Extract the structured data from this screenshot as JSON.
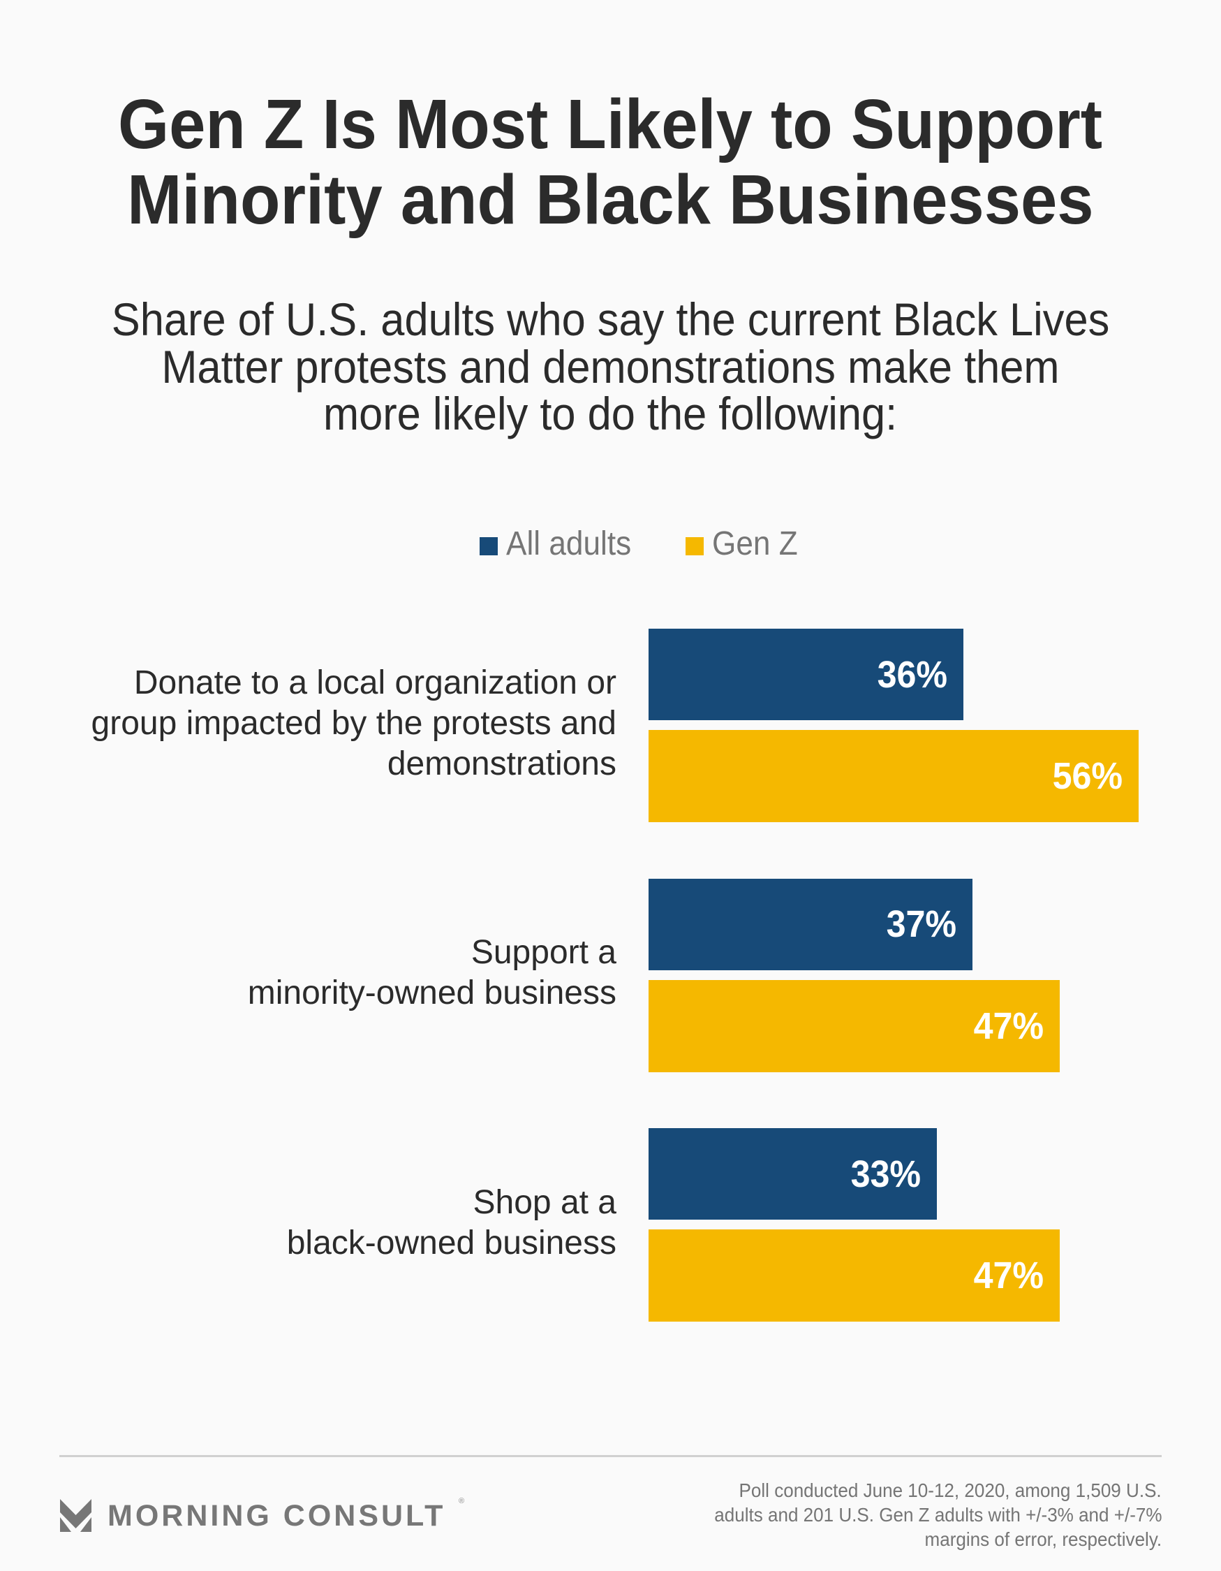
{
  "header": {
    "title_lines": [
      "Gen Z Is Most Likely to Support",
      "Minority and Black Businesses"
    ],
    "subtitle_lines": [
      "Share of U.S. adults who say the current Black Lives",
      "Matter protests and demonstrations make them",
      "more likely to do the following:"
    ]
  },
  "chart_data": {
    "type": "bar",
    "orientation": "horizontal",
    "title": "Gen Z Is Most Likely to Support Minority and Black Businesses",
    "subtitle": "Share of U.S. adults who say the current Black Lives Matter protests and demonstrations make them more likely to do the following:",
    "categories": [
      [
        "Donate to a local organization or",
        "group impacted by the protests and",
        "demonstrations"
      ],
      [
        "Support a",
        "minority-owned business"
      ],
      [
        "Shop at a",
        "black-owned business"
      ]
    ],
    "series": [
      {
        "name": "All adults",
        "color": "#174a78",
        "values": [
          36,
          37,
          33
        ],
        "labels": [
          "36%",
          "37%",
          "33%"
        ]
      },
      {
        "name": "Gen Z",
        "color": "#f5b800",
        "values": [
          56,
          47,
          47
        ],
        "labels": [
          "56%",
          "47%",
          "47%"
        ]
      }
    ],
    "unit": "%",
    "xlim": [
      0,
      100
    ],
    "grid": false,
    "legend": "top-center",
    "xlabel": "",
    "ylabel": ""
  },
  "footer": {
    "brand": "MORNING CONSULT",
    "brand_mark": "®",
    "logo_icon": "morning-consult-chevron-icon",
    "note_lines": [
      "Poll conducted June 10-12, 2020, among 1,509 U.S.",
      "adults and 201 U.S. Gen Z adults with +/-3% and +/-7%",
      "margins of error, respectively."
    ]
  },
  "colors": {
    "background": "#fafafa",
    "text": "#2b2b2b",
    "muted_text": "#757575",
    "all_adults": "#174a78",
    "gen_z": "#f5b800"
  }
}
